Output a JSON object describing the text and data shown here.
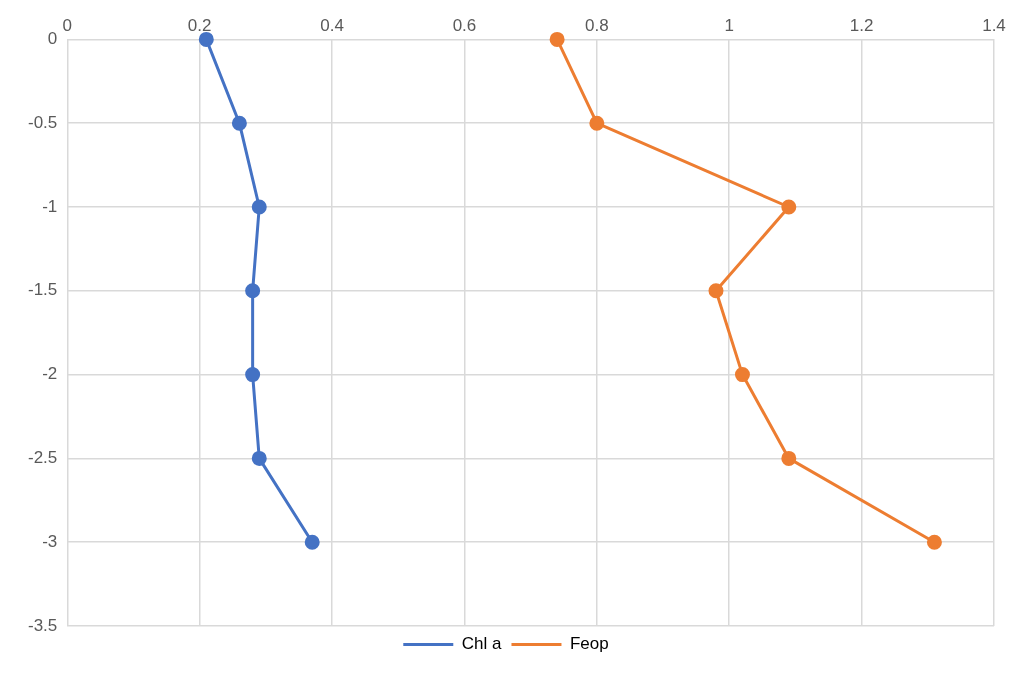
{
  "chart_data": {
    "type": "line",
    "series": [
      {
        "name": "Chl a",
        "color": "#4472c4",
        "x": [
          0.21,
          0.26,
          0.29,
          0.28,
          0.28,
          0.29,
          0.37
        ],
        "values": [
          0,
          -0.5,
          -1,
          -1.5,
          -2,
          -2.5,
          -3
        ]
      },
      {
        "name": "Feop",
        "color": "#ed7d31",
        "x": [
          0.74,
          0.8,
          1.09,
          0.98,
          1.02,
          1.09,
          1.31
        ],
        "values": [
          0,
          -0.5,
          -1,
          -1.5,
          -2,
          -2.5,
          -3
        ]
      }
    ],
    "xlim": [
      0,
      1.4
    ],
    "xticks": [
      0,
      0.2,
      0.4,
      0.6,
      0.8,
      1,
      1.2,
      1.4
    ],
    "ylim": [
      -3.5,
      0
    ],
    "yticks": [
      0,
      -0.5,
      -1,
      -1.5,
      -2,
      -2.5,
      -3,
      -3.5
    ],
    "grid": true,
    "legend": "bottom",
    "marker": "circle",
    "line_style": "solid"
  }
}
